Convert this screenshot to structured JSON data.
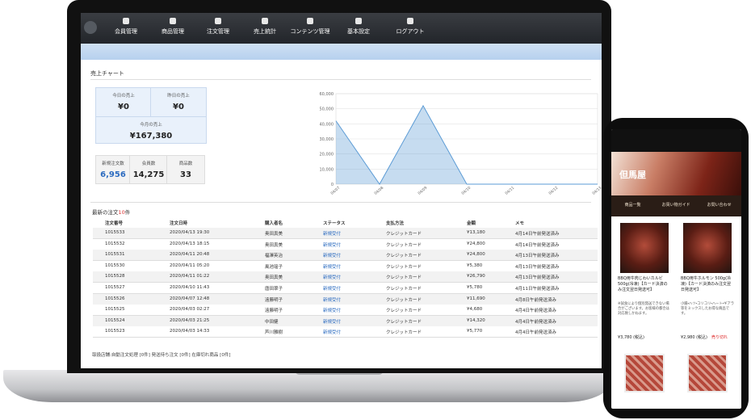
{
  "nav": {
    "items": [
      "会員管理",
      "商品管理",
      "注文管理",
      "売上統計",
      "コンテンツ管理",
      "基本設定",
      "ログアウト"
    ]
  },
  "panel_title": "売上チャート",
  "stats": [
    {
      "label": "今日の売上",
      "value": "¥0"
    },
    {
      "label": "昨日の売上",
      "value": "¥0"
    },
    {
      "label": "今月の売上",
      "value": "¥167,380"
    },
    {
      "label": "新規注文数",
      "value": "6,956"
    },
    {
      "label": "会員数",
      "value": "14,275"
    },
    {
      "label": "商品数",
      "value": "33"
    }
  ],
  "sales_chart": {
    "type": "area",
    "x": [
      "04/07",
      "04/08",
      "04/09",
      "04/10",
      "04/11",
      "04/12",
      "04/13"
    ],
    "values": [
      42000,
      0,
      52000,
      0,
      0,
      0,
      0
    ],
    "ylim": [
      0,
      60000
    ],
    "yticks": [
      0,
      {
        "value": 10000,
        "label": "10,000"
      },
      {
        "value": 20000,
        "label": "20,000"
      },
      {
        "value": 30000,
        "label": "30,000"
      },
      {
        "value": 40000,
        "label": "40,000"
      },
      {
        "value": 50000,
        "label": "50,000"
      },
      {
        "value": 60000,
        "label": "60,000"
      }
    ],
    "color": "#5b9bd5",
    "grid": true
  },
  "orders": {
    "title": "最新の注文",
    "count": "10",
    "unit": "件",
    "columns": [
      "注文番号",
      "注文日時",
      "購入者名",
      "ステータス",
      "支払方法",
      "金額",
      "メモ"
    ],
    "rows": [
      [
        "1015533",
        "2020/04/13 19:30",
        "奥田真美",
        "新規受付",
        "クレジットカード",
        "¥13,180",
        "4月14日午前発送済み"
      ],
      [
        "1015532",
        "2020/04/13 18:15",
        "奥田真美",
        "新規受付",
        "クレジットカード",
        "¥24,800",
        "4月14日午前発送済み"
      ],
      [
        "1015531",
        "2020/04/11 20:48",
        "福澤英治",
        "新規受付",
        "クレジットカード",
        "¥24,800",
        "4月13日午前発送済み"
      ],
      [
        "1015530",
        "2020/04/11 05:20",
        "風池瑶子",
        "新規受付",
        "クレジットカード",
        "¥5,380",
        "4月13日午前発送済み"
      ],
      [
        "1015528",
        "2020/04/11 01:22",
        "奥田真美",
        "新規受付",
        "クレジットカード",
        "¥26,790",
        "4月13日午前発送済み"
      ],
      [
        "1015527",
        "2020/04/10 11:43",
        "唐田翠子",
        "新規受付",
        "クレジットカード",
        "¥5,780",
        "4月11日午前発送済み"
      ],
      [
        "1015526",
        "2020/04/07 12:48",
        "遠藤明子",
        "新規受付",
        "クレジットカード",
        "¥11,690",
        "4月8日午前発送済み"
      ],
      [
        "1015525",
        "2020/04/03 02:27",
        "遠藤明子",
        "新規受付",
        "クレジットカード",
        "¥4,680",
        "4月4日午前発送済み"
      ],
      [
        "1015524",
        "2020/04/03 21:25",
        "中田健",
        "新規受付",
        "クレジットカード",
        "¥14,320",
        "4月4日午前発送済み"
      ],
      [
        "1015523",
        "2020/04/03 14:33",
        "芦川雅樹",
        "新規受付",
        "クレジットカード",
        "¥5,770",
        "4月4日午前発送済み"
      ]
    ]
  },
  "footer_note": "取扱店舗:自動注文処理 [0件] 発送待ち注文 [0件] 在庫切れ商品 [0件]",
  "phone": {
    "brand": "但馬屋",
    "menu": [
      "商品一覧",
      "お買い物ガイド",
      "お問い合わせ"
    ],
    "products": [
      {
        "name": "BBQ用牛肉じわいカルビ 500g(冷凍)【カード決済のみ注文翌日発送可】",
        "description": "※試食により個別発送できない場合がございます。お客様の都合は対応致しかねます。",
        "price": "¥3,780 (税込)"
      },
      {
        "name": "BBQ用牛ホルモン 500g(冷凍)【カード決済のみ注文翌日発送可】",
        "description": "小腸・ハツ・コリコリ・ハート・ギアラ等をミックスしたお得な商品です。",
        "price": "¥2,980 (税込)"
      }
    ],
    "sold_out": "売り切れ"
  }
}
